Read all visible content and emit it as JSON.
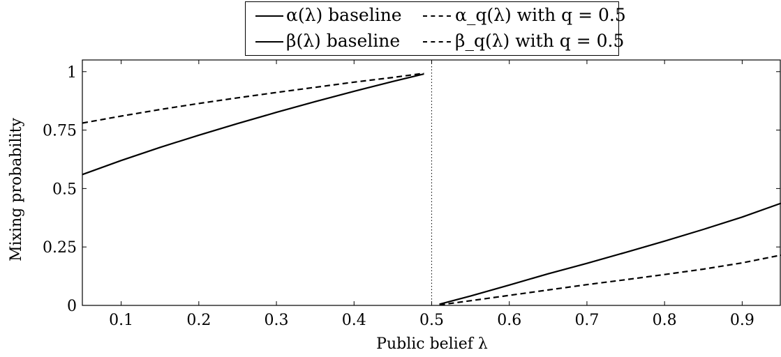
{
  "chart_data": {
    "type": "line",
    "xlabel": "Public belief λ",
    "ylabel": "Mixing probability",
    "xlim": [
      0.05,
      0.95
    ],
    "ylim": [
      0,
      1.05
    ],
    "x_ticks": [
      0.1,
      0.2,
      0.3,
      0.4,
      0.5,
      0.6,
      0.7,
      0.8,
      0.9
    ],
    "x_tick_labels": [
      "0.1",
      "0.2",
      "0.3",
      "0.4",
      "0.5",
      "0.6",
      "0.7",
      "0.8",
      "0.9"
    ],
    "y_ticks": [
      0,
      0.25,
      0.5,
      0.75,
      1
    ],
    "y_tick_labels": [
      "0",
      "0.25",
      "0.5",
      "0.75",
      "1"
    ],
    "vline_x": 0.5,
    "legend_position": "top-center",
    "grid": false,
    "series": [
      {
        "name": "α(λ) baseline",
        "style": "solid",
        "x": [
          0.05,
          0.1,
          0.15,
          0.2,
          0.25,
          0.3,
          0.35,
          0.4,
          0.45,
          0.49
        ],
        "y": [
          0.56,
          0.62,
          0.676,
          0.728,
          0.778,
          0.826,
          0.872,
          0.916,
          0.958,
          0.99
        ]
      },
      {
        "name": "α_q(λ) with q = 0.5",
        "style": "dashed",
        "x": [
          0.05,
          0.1,
          0.15,
          0.2,
          0.25,
          0.3,
          0.35,
          0.4,
          0.45,
          0.49
        ],
        "y": [
          0.78,
          0.81,
          0.838,
          0.864,
          0.888,
          0.911,
          0.933,
          0.955,
          0.975,
          0.993
        ]
      },
      {
        "name": "β(λ) baseline",
        "style": "solid",
        "x": [
          0.51,
          0.55,
          0.6,
          0.65,
          0.7,
          0.75,
          0.8,
          0.85,
          0.9,
          0.95
        ],
        "y": [
          0.005,
          0.04,
          0.087,
          0.135,
          0.18,
          0.227,
          0.275,
          0.325,
          0.378,
          0.437
        ]
      },
      {
        "name": "β_q(λ) with q = 0.5",
        "style": "dashed",
        "x": [
          0.51,
          0.55,
          0.6,
          0.65,
          0.7,
          0.75,
          0.8,
          0.85,
          0.9,
          0.95
        ],
        "y": [
          0.002,
          0.02,
          0.043,
          0.066,
          0.089,
          0.11,
          0.132,
          0.155,
          0.182,
          0.215
        ]
      }
    ]
  }
}
